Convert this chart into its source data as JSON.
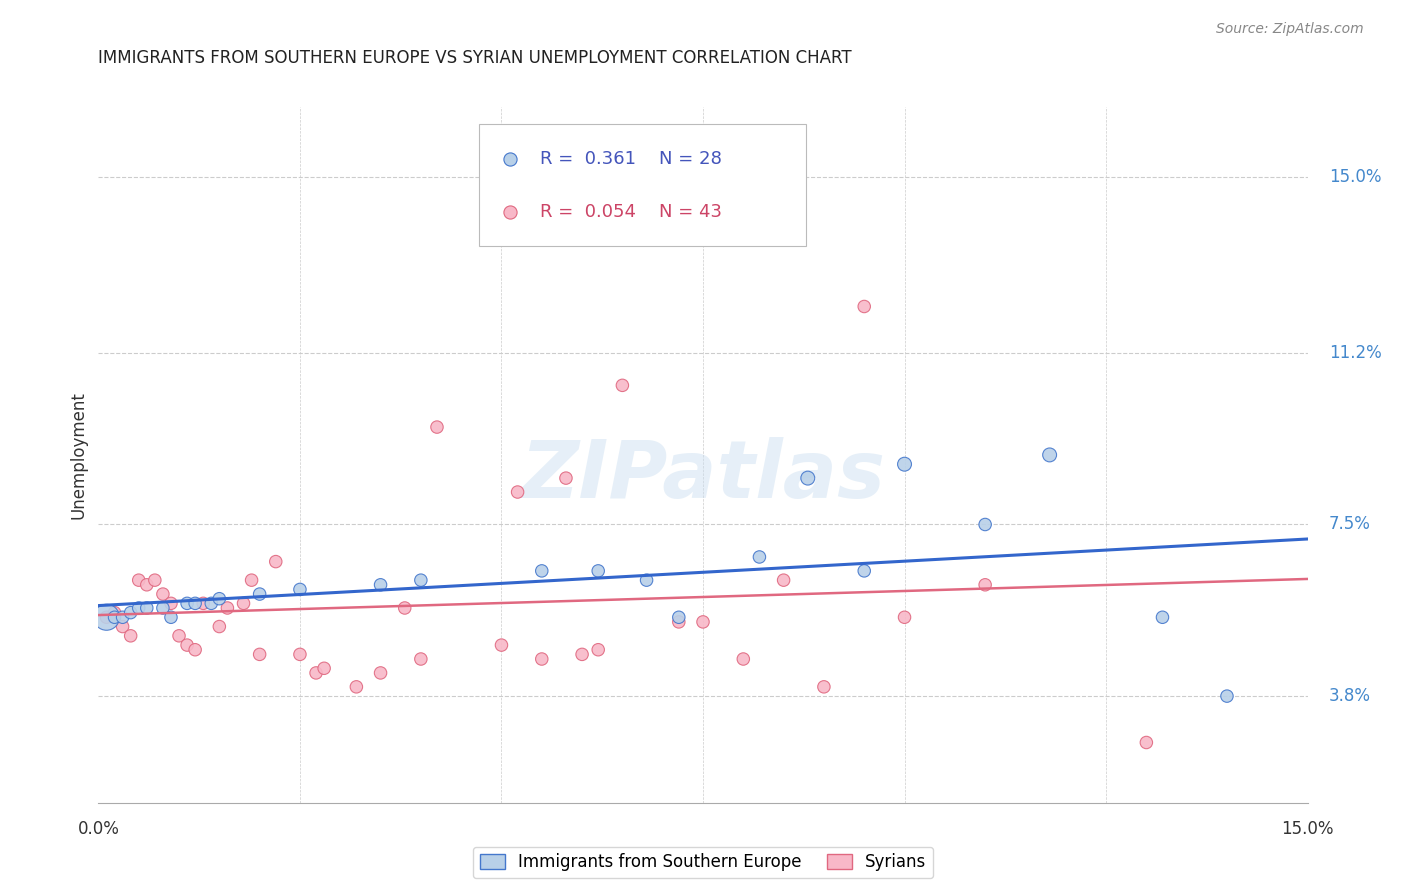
{
  "title": "IMMIGRANTS FROM SOUTHERN EUROPE VS SYRIAN UNEMPLOYMENT CORRELATION CHART",
  "source": "Source: ZipAtlas.com",
  "ylabel": "Unemployment",
  "ytick_vals": [
    0.038,
    0.075,
    0.112,
    0.15
  ],
  "ytick_labels": [
    "3.8%",
    "7.5%",
    "11.2%",
    "15.0%"
  ],
  "xlim": [
    0.0,
    0.15
  ],
  "ylim": [
    0.015,
    0.165
  ],
  "blue_R": "0.361",
  "blue_N": "28",
  "pink_R": "0.054",
  "pink_N": "43",
  "blue_color": "#b8d0e8",
  "pink_color": "#f8b8c8",
  "blue_edge_color": "#4477cc",
  "pink_edge_color": "#e06880",
  "blue_line_color": "#3366cc",
  "pink_line_color": "#e06880",
  "legend_label_blue": "Immigrants from Southern Europe",
  "legend_label_pink": "Syrians",
  "watermark": "ZIPatlas",
  "blue_x": [
    0.001,
    0.002,
    0.003,
    0.004,
    0.005,
    0.006,
    0.008,
    0.009,
    0.011,
    0.012,
    0.014,
    0.015,
    0.02,
    0.025,
    0.035,
    0.04,
    0.055,
    0.062,
    0.068,
    0.072,
    0.082,
    0.088,
    0.095,
    0.1,
    0.11,
    0.118,
    0.132,
    0.14
  ],
  "blue_y": [
    0.055,
    0.055,
    0.055,
    0.056,
    0.057,
    0.057,
    0.057,
    0.055,
    0.058,
    0.058,
    0.058,
    0.059,
    0.06,
    0.061,
    0.062,
    0.063,
    0.065,
    0.065,
    0.063,
    0.055,
    0.068,
    0.085,
    0.065,
    0.088,
    0.075,
    0.09,
    0.055,
    0.038
  ],
  "blue_size": [
    350,
    80,
    80,
    80,
    80,
    80,
    80,
    80,
    80,
    80,
    80,
    80,
    80,
    80,
    80,
    80,
    80,
    80,
    80,
    80,
    80,
    100,
    80,
    100,
    80,
    100,
    80,
    80
  ],
  "pink_x": [
    0.001,
    0.002,
    0.003,
    0.004,
    0.005,
    0.006,
    0.007,
    0.008,
    0.009,
    0.01,
    0.011,
    0.012,
    0.013,
    0.015,
    0.016,
    0.018,
    0.019,
    0.02,
    0.022,
    0.025,
    0.027,
    0.028,
    0.032,
    0.035,
    0.038,
    0.04,
    0.042,
    0.05,
    0.052,
    0.055,
    0.058,
    0.06,
    0.062,
    0.065,
    0.072,
    0.075,
    0.08,
    0.085,
    0.09,
    0.095,
    0.1,
    0.11,
    0.13
  ],
  "pink_y": [
    0.055,
    0.056,
    0.053,
    0.051,
    0.063,
    0.062,
    0.063,
    0.06,
    0.058,
    0.051,
    0.049,
    0.048,
    0.058,
    0.053,
    0.057,
    0.058,
    0.063,
    0.047,
    0.067,
    0.047,
    0.043,
    0.044,
    0.04,
    0.043,
    0.057,
    0.046,
    0.096,
    0.049,
    0.082,
    0.046,
    0.085,
    0.047,
    0.048,
    0.105,
    0.054,
    0.054,
    0.046,
    0.063,
    0.04,
    0.122,
    0.055,
    0.062,
    0.028
  ],
  "pink_size": [
    80,
    80,
    80,
    80,
    80,
    80,
    80,
    80,
    80,
    80,
    80,
    80,
    80,
    80,
    80,
    80,
    80,
    80,
    80,
    80,
    80,
    80,
    80,
    80,
    80,
    80,
    80,
    80,
    80,
    80,
    80,
    80,
    80,
    80,
    80,
    80,
    80,
    80,
    80,
    80,
    80,
    80,
    80
  ],
  "background_color": "#ffffff",
  "grid_color": "#cccccc"
}
